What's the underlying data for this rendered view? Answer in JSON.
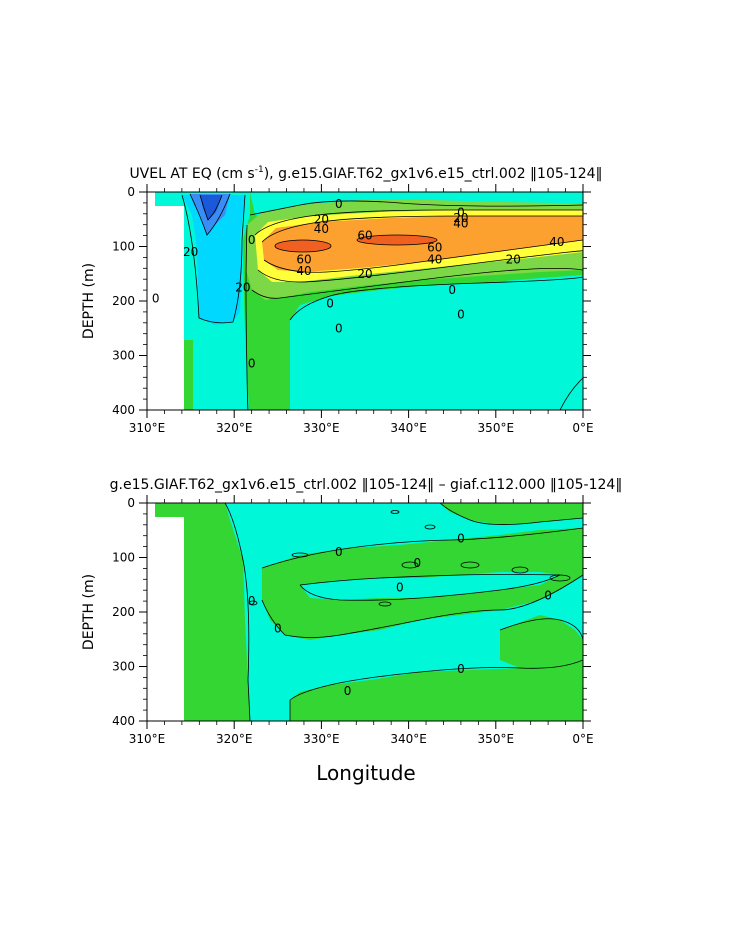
{
  "chart_data": [
    {
      "type": "heatmap",
      "title_prefix": "UVEL AT EQ (cm s",
      "title_exp": "-1",
      "title_suffix": "), g.e15.GIAF.T62_gx1v6.e15_ctrl.002 ‖105-124‖",
      "xlabel": "",
      "ylabel": "DEPTH (m)",
      "xlim": [
        310,
        360
      ],
      "ylim": [
        400,
        0
      ],
      "xticks": [
        "310°E",
        "320°E",
        "330°E",
        "340°E",
        "350°E",
        "0°E"
      ],
      "xtick_values": [
        310,
        320,
        330,
        340,
        350,
        360
      ],
      "yticks": [
        "0",
        "100",
        "200",
        "300",
        "400"
      ],
      "ytick_values": [
        0,
        100,
        200,
        300,
        400
      ],
      "contour_labels": [
        {
          "text": "0",
          "x": 332,
          "y": 22
        },
        {
          "text": "0",
          "x": 346,
          "y": 38
        },
        {
          "text": "20",
          "x": 330,
          "y": 50
        },
        {
          "text": "20",
          "x": 346,
          "y": 48
        },
        {
          "text": "40",
          "x": 330,
          "y": 68
        },
        {
          "text": "40",
          "x": 346,
          "y": 58
        },
        {
          "text": "60",
          "x": 335,
          "y": 80
        },
        {
          "text": "60",
          "x": 343,
          "y": 102
        },
        {
          "text": "40",
          "x": 357,
          "y": 92
        },
        {
          "text": "60",
          "x": 328,
          "y": 124
        },
        {
          "text": "40",
          "x": 343,
          "y": 124
        },
        {
          "text": "20",
          "x": 352,
          "y": 124
        },
        {
          "text": "40",
          "x": 328,
          "y": 145
        },
        {
          "text": "20",
          "x": 335,
          "y": 150
        },
        {
          "text": "20",
          "x": 321,
          "y": 175
        },
        {
          "text": "0",
          "x": 345,
          "y": 180
        },
        {
          "text": "0",
          "x": 331,
          "y": 205
        },
        {
          "text": "0",
          "x": 346,
          "y": 225
        },
        {
          "text": "0",
          "x": 332,
          "y": 250
        },
        {
          "text": "20",
          "x": 315,
          "y": 110
        },
        {
          "text": "0",
          "x": 311,
          "y": 195
        },
        {
          "text": "0",
          "x": 322,
          "y": 88
        },
        {
          "text": "0",
          "x": 322,
          "y": 315
        }
      ]
    },
    {
      "type": "heatmap",
      "title": "g.e15.GIAF.T62_gx1v6.e15_ctrl.002 ‖105-124‖ – giaf.c112.000 ‖105-124‖",
      "xlabel": "Longitude",
      "ylabel": "DEPTH (m)",
      "xlim": [
        310,
        360
      ],
      "ylim": [
        400,
        0
      ],
      "xticks": [
        "310°E",
        "320°E",
        "330°E",
        "340°E",
        "350°E",
        "0°E"
      ],
      "xtick_values": [
        310,
        320,
        330,
        340,
        350,
        360
      ],
      "yticks": [
        "0",
        "100",
        "200",
        "300",
        "400"
      ],
      "ytick_values": [
        0,
        100,
        200,
        300,
        400
      ],
      "contour_labels": [
        {
          "text": "0",
          "x": 346,
          "y": 65
        },
        {
          "text": "0",
          "x": 332,
          "y": 90
        },
        {
          "text": "0",
          "x": 341,
          "y": 110
        },
        {
          "text": "0",
          "x": 339,
          "y": 155
        },
        {
          "text": "0",
          "x": 356,
          "y": 170
        },
        {
          "text": "0",
          "x": 322,
          "y": 180
        },
        {
          "text": "0",
          "x": 325,
          "y": 230
        },
        {
          "text": "0",
          "x": 346,
          "y": 305
        },
        {
          "text": "0",
          "x": 333,
          "y": 345
        }
      ]
    }
  ],
  "colors": {
    "lightgreen": "#33d633",
    "cyan": "#00f7d8",
    "green": "#7cd846",
    "yellow": "#ffff3a",
    "orange": "#fca030",
    "red": "#f06020",
    "blue": "#3a8df5",
    "darkblue": "#1a5ad8",
    "skyblue": "#00d8ff"
  }
}
